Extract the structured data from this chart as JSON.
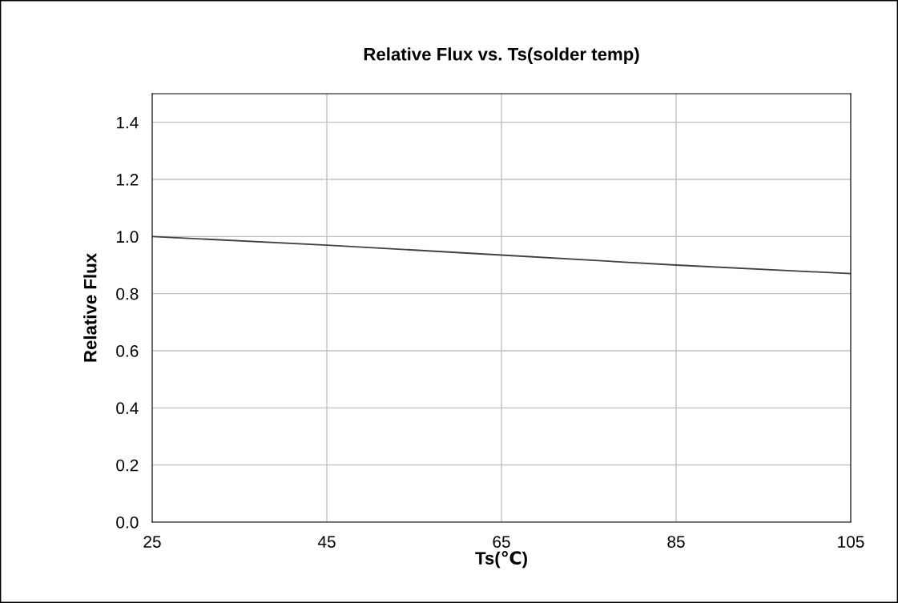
{
  "chart_data": {
    "type": "line",
    "title": "Relative Flux vs. Ts(solder temp)",
    "xlabel": "Ts(℃)",
    "ylabel": "Relative Flux",
    "x": [
      25,
      45,
      65,
      85,
      105
    ],
    "series": [
      {
        "color": "#404040",
        "values": [
          1.0,
          0.97,
          0.935,
          0.9,
          0.87
        ]
      }
    ],
    "xlim": [
      25,
      105
    ],
    "xticks": [
      25,
      45,
      65,
      85,
      105
    ],
    "ylim": [
      0.0,
      1.5
    ],
    "yticks": [
      {
        "value": 0,
        "label": "0.0"
      },
      0.2,
      0.4,
      0.6,
      0.8,
      {
        "value": 1,
        "label": "1.0"
      },
      1.2,
      1.4
    ],
    "grid": true,
    "marker": "none",
    "line_style": "solid"
  }
}
